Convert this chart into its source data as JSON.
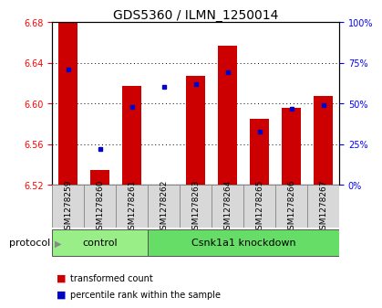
{
  "title": "GDS5360 / ILMN_1250014",
  "samples": [
    "GSM1278259",
    "GSM1278260",
    "GSM1278261",
    "GSM1278262",
    "GSM1278263",
    "GSM1278264",
    "GSM1278265",
    "GSM1278266",
    "GSM1278267"
  ],
  "transformed_count": [
    6.68,
    6.535,
    6.617,
    6.52,
    6.627,
    6.657,
    6.585,
    6.596,
    6.607
  ],
  "percentile_rank": [
    71,
    22,
    48,
    60,
    62,
    69,
    33,
    47,
    49
  ],
  "y_min": 6.52,
  "y_max": 6.68,
  "y_ticks": [
    6.52,
    6.56,
    6.6,
    6.64,
    6.68
  ],
  "y2_ticks": [
    0,
    25,
    50,
    75,
    100
  ],
  "bar_color": "#cc0000",
  "dot_color": "#0000cc",
  "groups": [
    {
      "label": "control",
      "start": 0,
      "end": 2,
      "color": "#99ee88"
    },
    {
      "label": "Csnk1a1 knockdown",
      "start": 3,
      "end": 8,
      "color": "#66dd66"
    }
  ],
  "protocol_label": "protocol",
  "legend_bar_label": "transformed count",
  "legend_dot_label": "percentile rank within the sample",
  "title_fontsize": 10,
  "tick_fontsize": 7,
  "sample_fontsize": 6.5,
  "label_fontsize": 8,
  "group_label_fontsize": 8,
  "xtick_bg_color": "#d8d8d8",
  "xtick_border_color": "#888888",
  "plot_bg_color": "#ffffff"
}
